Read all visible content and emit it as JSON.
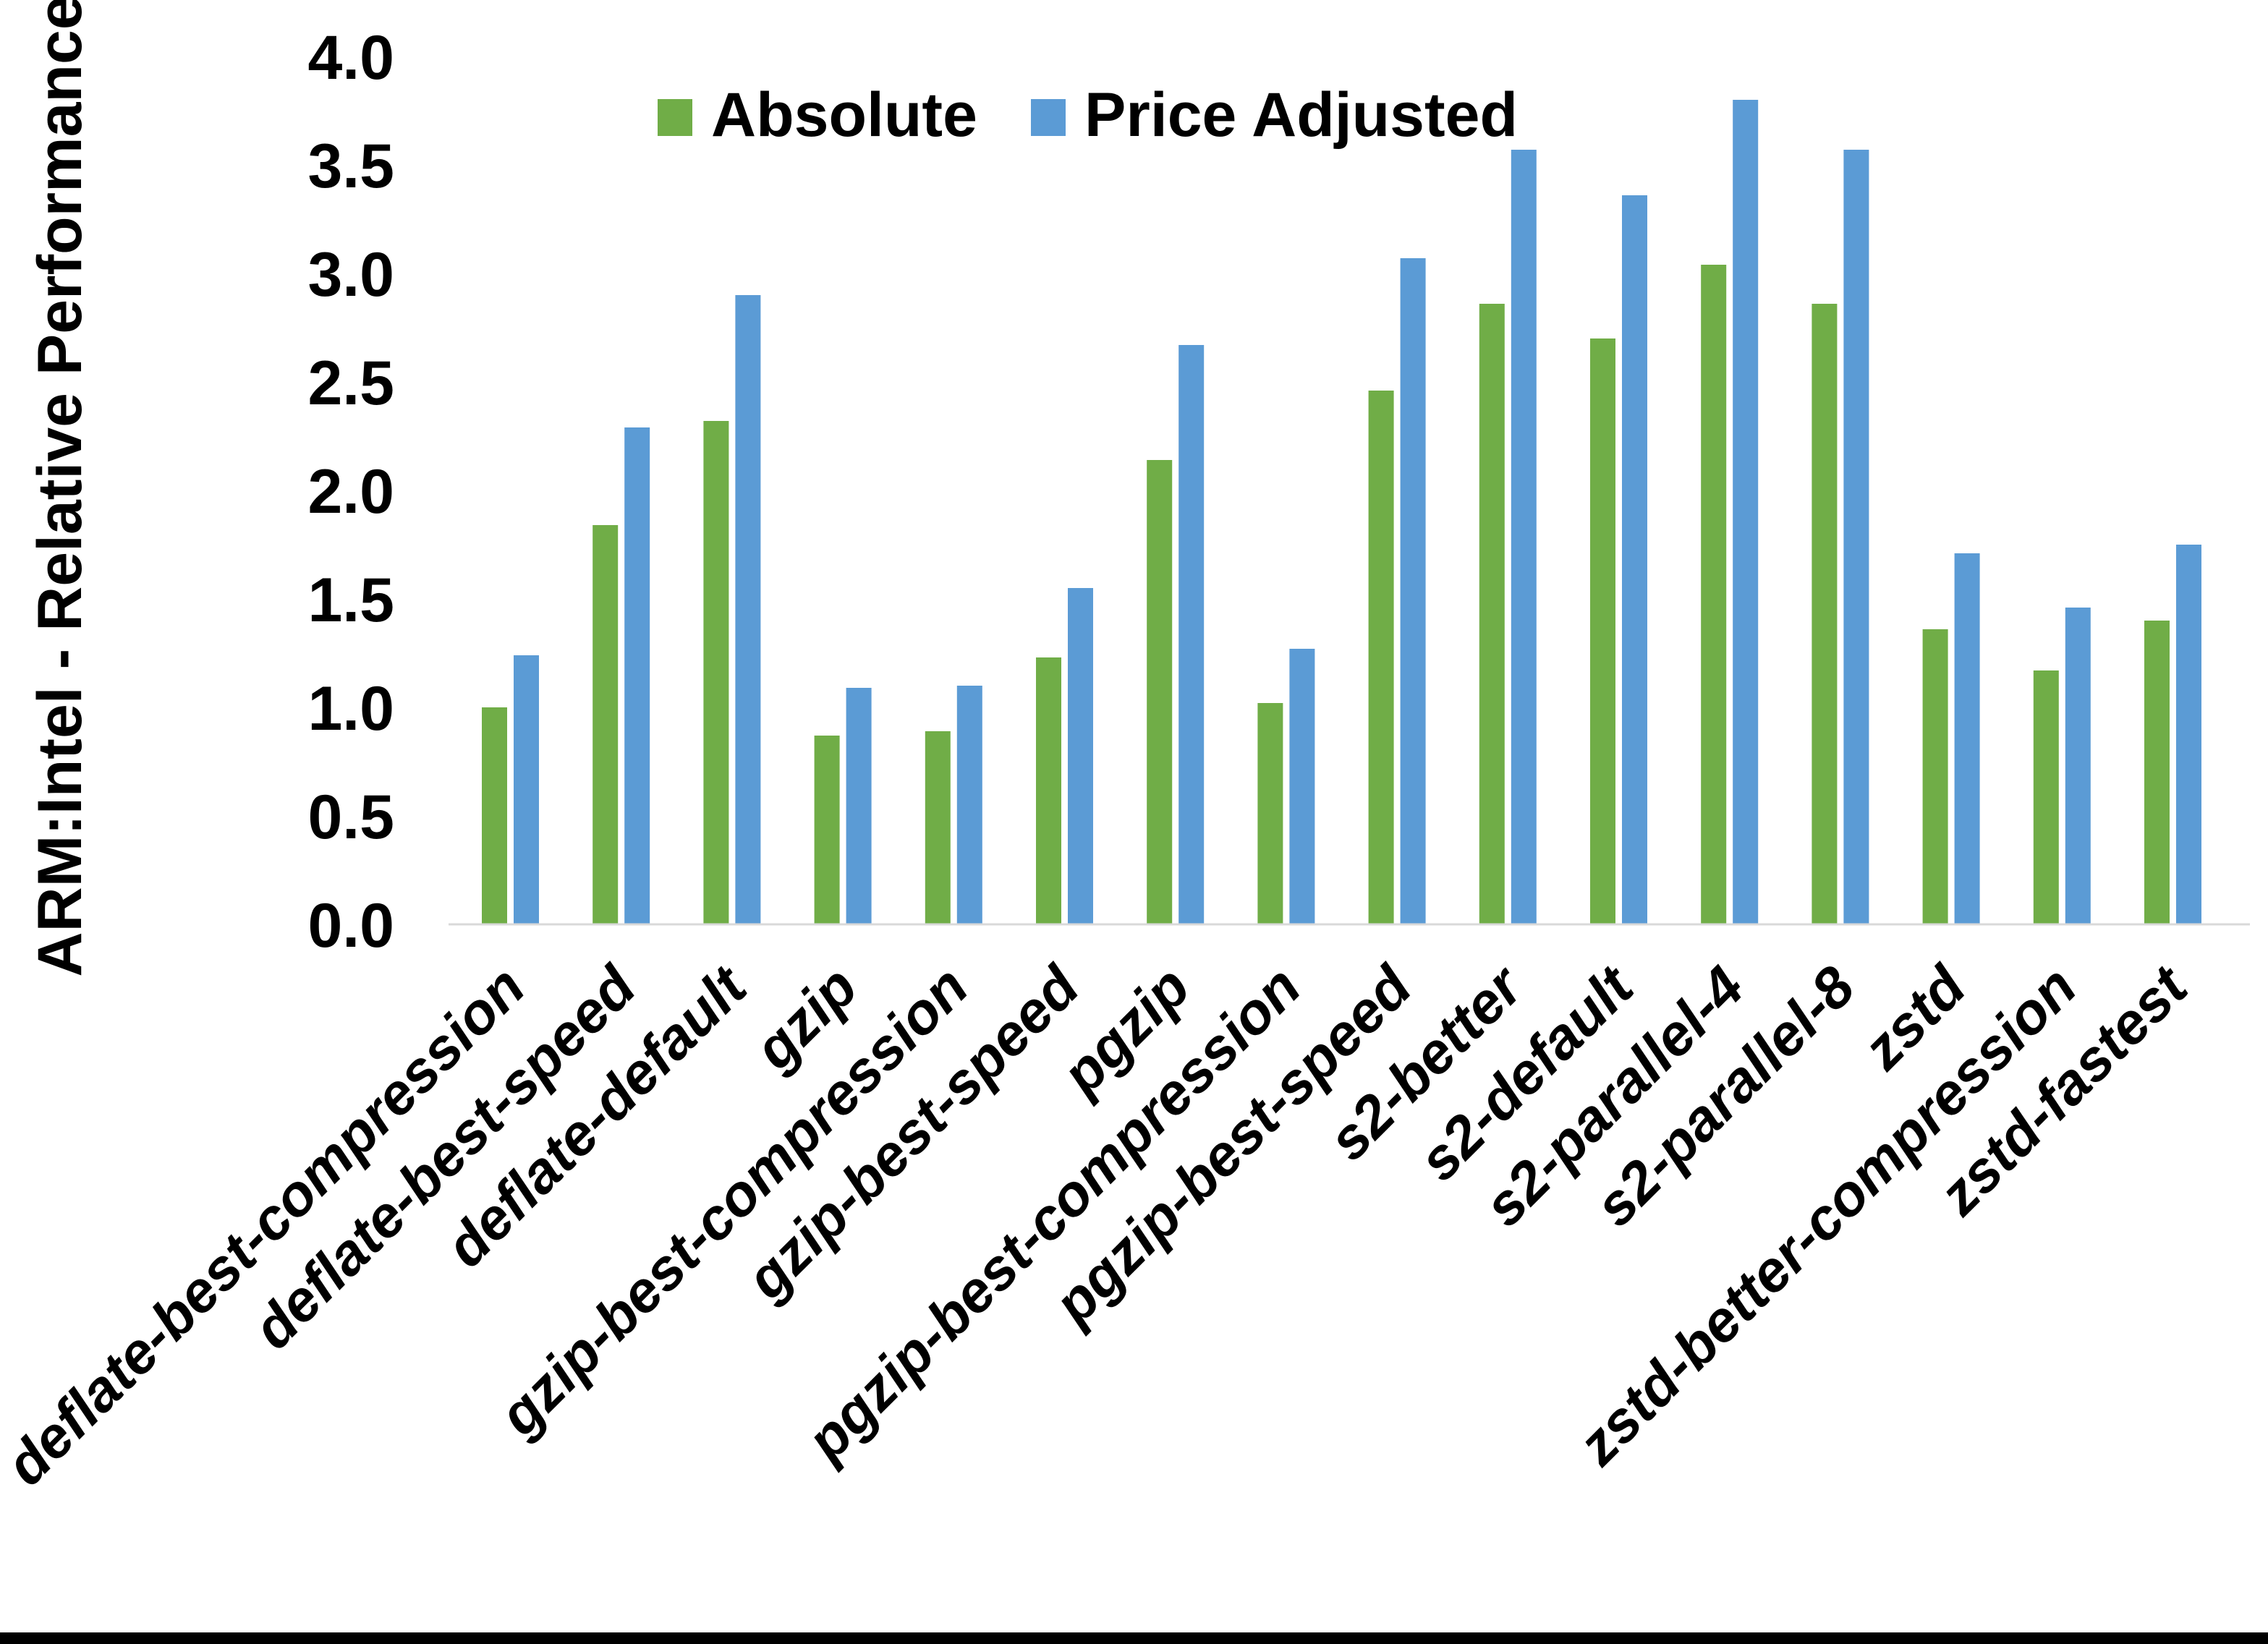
{
  "figure": {
    "background_color": "#FFFFFF",
    "bottom_border_color": "#000000",
    "axis_line_color": "#D9D9D9"
  },
  "chart_data": {
    "type": "bar",
    "title": "",
    "xlabel": "",
    "ylabel": "ARM:Intel - Relative Performance",
    "ylim": [
      0.0,
      4.0
    ],
    "ytick_step": 0.5,
    "ytick_labels": [
      "0.0",
      "0.5",
      "1.0",
      "1.5",
      "2.0",
      "2.5",
      "3.0",
      "3.5",
      "4.0"
    ],
    "grid": false,
    "legend_position": "top-center",
    "categories": [
      "deflate-best-compression",
      "deflate-best-speed",
      "deflate-default",
      "gzip",
      "gzip-best-compression",
      "gzip-best-speed",
      "pgzip",
      "pgzip-best-compression",
      "pgzip-best-speed",
      "s2-better",
      "s2-default",
      "s2-parallel-4",
      "s2-parallel-8",
      "zstd",
      "zstd-better-compression",
      "zstd-fastest"
    ],
    "series": [
      {
        "name": "Absolute",
        "color": "#70AD47",
        "values": [
          1.0,
          1.84,
          2.32,
          0.87,
          0.89,
          1.23,
          2.14,
          1.02,
          2.46,
          2.86,
          2.7,
          3.04,
          2.86,
          1.36,
          1.17,
          1.4
        ]
      },
      {
        "name": "Price Adjusted",
        "color": "#5B9BD5",
        "values": [
          1.24,
          2.29,
          2.9,
          1.09,
          1.1,
          1.55,
          2.67,
          1.27,
          3.07,
          3.57,
          3.36,
          3.8,
          3.57,
          1.71,
          1.46,
          1.75
        ]
      }
    ]
  }
}
